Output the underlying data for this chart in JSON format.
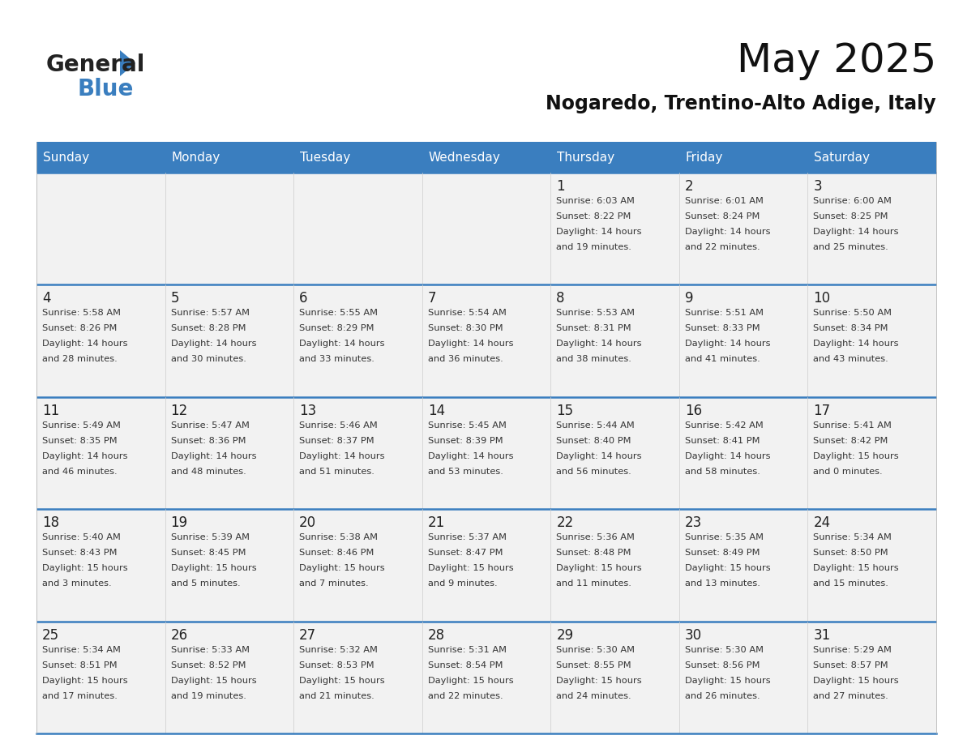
{
  "title": "May 2025",
  "subtitle": "Nogaredo, Trentino-Alto Adige, Italy",
  "header_bg_color": "#3a7ebf",
  "header_text_color": "#ffffff",
  "cell_bg_color": "#f2f2f2",
  "title_color": "#111111",
  "subtitle_color": "#111111",
  "border_color": "#3a7ebf",
  "day_names": [
    "Sunday",
    "Monday",
    "Tuesday",
    "Wednesday",
    "Thursday",
    "Friday",
    "Saturday"
  ],
  "weeks": [
    [
      {
        "day": "",
        "info": ""
      },
      {
        "day": "",
        "info": ""
      },
      {
        "day": "",
        "info": ""
      },
      {
        "day": "",
        "info": ""
      },
      {
        "day": "1",
        "info": "Sunrise: 6:03 AM\nSunset: 8:22 PM\nDaylight: 14 hours\nand 19 minutes."
      },
      {
        "day": "2",
        "info": "Sunrise: 6:01 AM\nSunset: 8:24 PM\nDaylight: 14 hours\nand 22 minutes."
      },
      {
        "day": "3",
        "info": "Sunrise: 6:00 AM\nSunset: 8:25 PM\nDaylight: 14 hours\nand 25 minutes."
      }
    ],
    [
      {
        "day": "4",
        "info": "Sunrise: 5:58 AM\nSunset: 8:26 PM\nDaylight: 14 hours\nand 28 minutes."
      },
      {
        "day": "5",
        "info": "Sunrise: 5:57 AM\nSunset: 8:28 PM\nDaylight: 14 hours\nand 30 minutes."
      },
      {
        "day": "6",
        "info": "Sunrise: 5:55 AM\nSunset: 8:29 PM\nDaylight: 14 hours\nand 33 minutes."
      },
      {
        "day": "7",
        "info": "Sunrise: 5:54 AM\nSunset: 8:30 PM\nDaylight: 14 hours\nand 36 minutes."
      },
      {
        "day": "8",
        "info": "Sunrise: 5:53 AM\nSunset: 8:31 PM\nDaylight: 14 hours\nand 38 minutes."
      },
      {
        "day": "9",
        "info": "Sunrise: 5:51 AM\nSunset: 8:33 PM\nDaylight: 14 hours\nand 41 minutes."
      },
      {
        "day": "10",
        "info": "Sunrise: 5:50 AM\nSunset: 8:34 PM\nDaylight: 14 hours\nand 43 minutes."
      }
    ],
    [
      {
        "day": "11",
        "info": "Sunrise: 5:49 AM\nSunset: 8:35 PM\nDaylight: 14 hours\nand 46 minutes."
      },
      {
        "day": "12",
        "info": "Sunrise: 5:47 AM\nSunset: 8:36 PM\nDaylight: 14 hours\nand 48 minutes."
      },
      {
        "day": "13",
        "info": "Sunrise: 5:46 AM\nSunset: 8:37 PM\nDaylight: 14 hours\nand 51 minutes."
      },
      {
        "day": "14",
        "info": "Sunrise: 5:45 AM\nSunset: 8:39 PM\nDaylight: 14 hours\nand 53 minutes."
      },
      {
        "day": "15",
        "info": "Sunrise: 5:44 AM\nSunset: 8:40 PM\nDaylight: 14 hours\nand 56 minutes."
      },
      {
        "day": "16",
        "info": "Sunrise: 5:42 AM\nSunset: 8:41 PM\nDaylight: 14 hours\nand 58 minutes."
      },
      {
        "day": "17",
        "info": "Sunrise: 5:41 AM\nSunset: 8:42 PM\nDaylight: 15 hours\nand 0 minutes."
      }
    ],
    [
      {
        "day": "18",
        "info": "Sunrise: 5:40 AM\nSunset: 8:43 PM\nDaylight: 15 hours\nand 3 minutes."
      },
      {
        "day": "19",
        "info": "Sunrise: 5:39 AM\nSunset: 8:45 PM\nDaylight: 15 hours\nand 5 minutes."
      },
      {
        "day": "20",
        "info": "Sunrise: 5:38 AM\nSunset: 8:46 PM\nDaylight: 15 hours\nand 7 minutes."
      },
      {
        "day": "21",
        "info": "Sunrise: 5:37 AM\nSunset: 8:47 PM\nDaylight: 15 hours\nand 9 minutes."
      },
      {
        "day": "22",
        "info": "Sunrise: 5:36 AM\nSunset: 8:48 PM\nDaylight: 15 hours\nand 11 minutes."
      },
      {
        "day": "23",
        "info": "Sunrise: 5:35 AM\nSunset: 8:49 PM\nDaylight: 15 hours\nand 13 minutes."
      },
      {
        "day": "24",
        "info": "Sunrise: 5:34 AM\nSunset: 8:50 PM\nDaylight: 15 hours\nand 15 minutes."
      }
    ],
    [
      {
        "day": "25",
        "info": "Sunrise: 5:34 AM\nSunset: 8:51 PM\nDaylight: 15 hours\nand 17 minutes."
      },
      {
        "day": "26",
        "info": "Sunrise: 5:33 AM\nSunset: 8:52 PM\nDaylight: 15 hours\nand 19 minutes."
      },
      {
        "day": "27",
        "info": "Sunrise: 5:32 AM\nSunset: 8:53 PM\nDaylight: 15 hours\nand 21 minutes."
      },
      {
        "day": "28",
        "info": "Sunrise: 5:31 AM\nSunset: 8:54 PM\nDaylight: 15 hours\nand 22 minutes."
      },
      {
        "day": "29",
        "info": "Sunrise: 5:30 AM\nSunset: 8:55 PM\nDaylight: 15 hours\nand 24 minutes."
      },
      {
        "day": "30",
        "info": "Sunrise: 5:30 AM\nSunset: 8:56 PM\nDaylight: 15 hours\nand 26 minutes."
      },
      {
        "day": "31",
        "info": "Sunrise: 5:29 AM\nSunset: 8:57 PM\nDaylight: 15 hours\nand 27 minutes."
      }
    ]
  ]
}
